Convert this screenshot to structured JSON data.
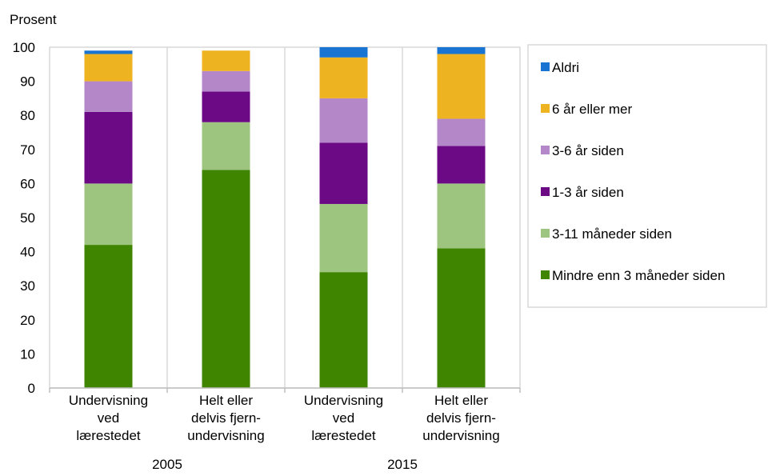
{
  "chart_data": {
    "type": "bar",
    "stacked": true,
    "ylabel": "Prosent",
    "ylim": [
      0,
      100
    ],
    "yticks": [
      0,
      10,
      20,
      30,
      40,
      50,
      60,
      70,
      80,
      90,
      100
    ],
    "grid": "vertical category separators",
    "legend_position": "right",
    "groups": [
      {
        "label": "2005",
        "categories": [
          "Undervisning ved lærestedet",
          "Helt eller delvis fjern-undervisning"
        ]
      },
      {
        "label": "2015",
        "categories": [
          "Undervisning ved lærestedet",
          "Helt eller delvis fjern-undervisning"
        ]
      }
    ],
    "categories": [
      [
        "Undervisning",
        "ved",
        "lærestedet"
      ],
      [
        "Helt eller",
        "delvis fjern-",
        "undervisning"
      ],
      [
        "Undervisning",
        "ved",
        "lærestedet"
      ],
      [
        "Helt eller",
        "delvis fjern-",
        "undervisning"
      ]
    ],
    "series": [
      {
        "name": "Mindre enn 3 måneder siden",
        "color": "#3f8500",
        "values": [
          42,
          64,
          34,
          41
        ]
      },
      {
        "name": "3-11 måneder siden",
        "color": "#9dc57f",
        "values": [
          18,
          14,
          20,
          19
        ]
      },
      {
        "name": "1-3 år siden",
        "color": "#6c0a85",
        "values": [
          21,
          9,
          18,
          11
        ]
      },
      {
        "name": "3-6 år siden",
        "color": "#b487c8",
        "values": [
          9,
          6,
          13,
          8
        ]
      },
      {
        "name": "6 år eller mer",
        "color": "#eeb321",
        "values": [
          8,
          6,
          12,
          19
        ]
      },
      {
        "name": "Aldri",
        "color": "#1a74d1",
        "values": [
          1,
          0,
          3,
          2
        ]
      }
    ]
  }
}
